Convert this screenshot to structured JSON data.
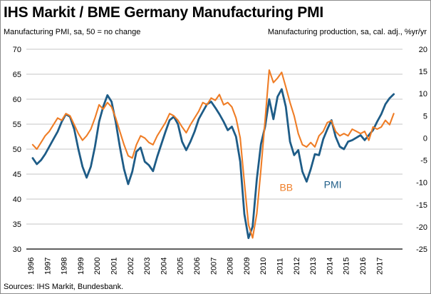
{
  "title": "IHS Markit / BME Germany Manufacturing PMI",
  "subtitle_left": "Manufacturing PMI, sa, 50 = no change",
  "subtitle_right": "Manufacturing production, sa, cal. adj., %yr/yr",
  "source": "Sources: IHS Markit, Bundesbank.",
  "colors": {
    "pmi_line": "#1E5C87",
    "bb_line": "#EF7D26",
    "gridline": "#C6C6C6",
    "axis_line": "#000000",
    "text": "#000000"
  },
  "chart_data": {
    "type": "line",
    "title": "IHS Markit / BME Germany Manufacturing PMI",
    "grid": true,
    "legend_position": "inline-annotations",
    "x_tick_labels": [
      "1996",
      "1997",
      "1998",
      "1999",
      "2000",
      "2001",
      "2002",
      "2003",
      "2004",
      "2005",
      "2006",
      "2007",
      "2008",
      "2009",
      "2010",
      "2011",
      "2012",
      "2013",
      "2014",
      "2015",
      "2016",
      "2017"
    ],
    "x_range": [
      1996,
      2018
    ],
    "x_start": 1996.125,
    "x_step": 0.25,
    "left_axis": {
      "label": "Manufacturing PMI, sa, 50 = no change",
      "ticks": [
        70,
        65,
        60,
        55,
        50,
        45,
        40,
        35,
        30
      ],
      "range": [
        30,
        70
      ]
    },
    "right_axis": {
      "label": "Manufacturing production, sa, cal. adj., %yr/yr",
      "ticks": [
        20,
        15,
        10,
        5,
        0,
        -5,
        -10,
        -15,
        -20,
        -25
      ],
      "range": [
        -25,
        20
      ]
    },
    "series": [
      {
        "name": "PMI",
        "axis": "left",
        "color": "#1E5C87",
        "stroke_width": 2.8,
        "values": [
          48.2,
          47.0,
          47.8,
          49.0,
          50.5,
          52.0,
          53.5,
          55.5,
          57.0,
          56.5,
          54.0,
          50.0,
          46.5,
          44.3,
          46.5,
          50.5,
          55.5,
          58.5,
          60.8,
          59.5,
          55.5,
          50.5,
          46.0,
          43.0,
          45.5,
          49.5,
          50.3,
          47.5,
          46.8,
          45.6,
          48.5,
          51.0,
          53.5,
          55.8,
          56.5,
          55.0,
          51.5,
          49.8,
          51.5,
          53.5,
          56.0,
          57.5,
          59.0,
          59.5,
          58.3,
          57.0,
          55.5,
          53.8,
          54.5,
          52.5,
          47.5,
          37.0,
          32.2,
          34.5,
          44.0,
          51.0,
          54.5,
          60.0,
          56.0,
          60.5,
          62.0,
          58.5,
          51.5,
          48.8,
          49.8,
          45.5,
          43.5,
          46.0,
          49.0,
          48.8,
          52.0,
          54.0,
          55.8,
          52.5,
          50.5,
          50.0,
          51.5,
          51.8,
          52.3,
          52.8,
          51.8,
          52.8,
          53.8,
          55.5,
          57.0,
          59.0,
          60.2,
          61.0
        ]
      },
      {
        "name": "BB",
        "axis": "right",
        "color": "#EF7D26",
        "stroke_width": 2.1,
        "values": [
          -1.5,
          -2.5,
          -1.0,
          0.5,
          1.5,
          3.0,
          4.5,
          4.0,
          5.5,
          5.0,
          3.0,
          1.0,
          -0.5,
          0.5,
          2.0,
          4.5,
          7.5,
          6.5,
          8.0,
          7.0,
          4.5,
          1.5,
          -1.5,
          -4.0,
          -4.5,
          -1.5,
          0.5,
          0.0,
          -1.0,
          -1.5,
          0.5,
          2.0,
          3.5,
          5.5,
          5.0,
          4.0,
          2.5,
          1.2,
          3.0,
          4.5,
          6.0,
          8.0,
          7.5,
          9.0,
          8.5,
          9.8,
          7.5,
          8.0,
          7.0,
          4.5,
          0.0,
          -10.0,
          -19.5,
          -22.5,
          -17.0,
          -7.0,
          4.0,
          15.3,
          12.5,
          13.5,
          14.8,
          11.5,
          8.0,
          5.0,
          1.0,
          -1.5,
          -2.0,
          -1.0,
          -2.0,
          0.5,
          1.5,
          3.5,
          3.9,
          1.5,
          0.5,
          1.0,
          0.5,
          2.0,
          1.5,
          1.0,
          1.5,
          -0.5,
          2.5,
          2.0,
          2.5,
          4.0,
          3.0,
          5.5
        ]
      }
    ],
    "annotations": [
      {
        "text": "BB",
        "axis": "right",
        "x": 2011.4,
        "y": -11.9,
        "color": "#EF7D26"
      },
      {
        "text": "PMI",
        "axis": "left",
        "x": 2014.2,
        "y": 42.2,
        "color": "#1E5C87"
      }
    ],
    "source": "Sources: IHS Markit, Bundesbank."
  }
}
